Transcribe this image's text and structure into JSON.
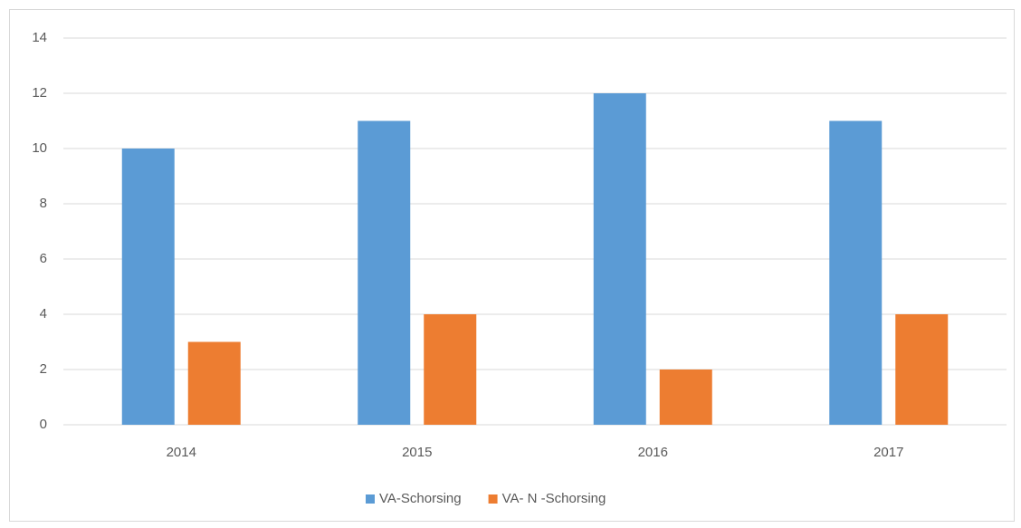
{
  "chart_data": {
    "type": "bar",
    "categories": [
      "2014",
      "2015",
      "2016",
      "2017"
    ],
    "series": [
      {
        "name": "VA-Schorsing",
        "color": "#5b9bd5",
        "values": [
          10,
          11,
          12,
          11
        ]
      },
      {
        "name": "VA- N -Schorsing",
        "color": "#ed7d31",
        "values": [
          3,
          4,
          2,
          4
        ]
      }
    ],
    "ylim": [
      0,
      14
    ],
    "yticks": [
      0,
      2,
      4,
      6,
      8,
      10,
      12,
      14
    ],
    "grid": true,
    "legend": "bottom"
  }
}
